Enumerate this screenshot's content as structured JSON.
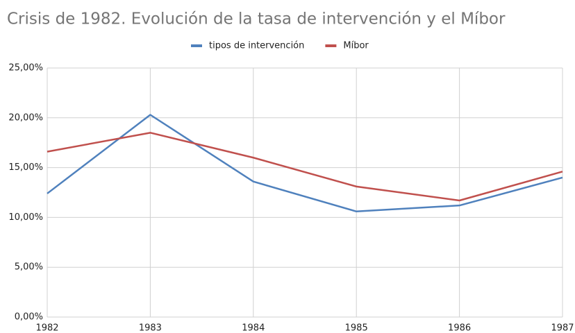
{
  "chart_data": {
    "type": "line",
    "title": "Crisis de 1982. Evolución de la tasa de intervención y el Míbor",
    "x": [
      1982,
      1983,
      1984,
      1985,
      1986,
      1987
    ],
    "series": [
      {
        "name": "tipos de intervención",
        "color": "#4f81bd",
        "values": [
          12.4,
          20.3,
          13.6,
          10.6,
          11.2,
          14.0
        ]
      },
      {
        "name": "Míbor",
        "color": "#c0504d",
        "values": [
          16.6,
          18.5,
          16.0,
          13.1,
          11.7,
          14.6
        ]
      }
    ],
    "xlim": [
      1982,
      1987
    ],
    "xticks": [
      1982,
      1983,
      1984,
      1985,
      1986,
      1987
    ],
    "ylim": [
      0,
      25
    ],
    "yticks": [
      {
        "value": 0,
        "label": "0,00%"
      },
      {
        "value": 5,
        "label": "5,00%"
      },
      {
        "value": 10,
        "label": "10,00%"
      },
      {
        "value": 15,
        "label": "15,00%"
      },
      {
        "value": 20,
        "label": "20,00%"
      },
      {
        "value": 25,
        "label": "25,00%"
      }
    ],
    "grid": true,
    "legend": "top"
  }
}
